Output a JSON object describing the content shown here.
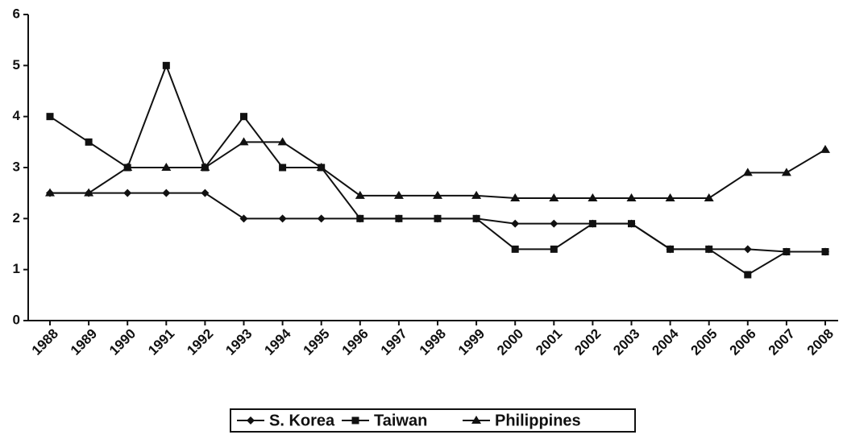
{
  "chart_data": {
    "type": "line",
    "categories": [
      "1988",
      "1989",
      "1990",
      "1991",
      "1992",
      "1993",
      "1994",
      "1995",
      "1996",
      "1997",
      "1998",
      "1999",
      "2000",
      "2001",
      "2002",
      "2003",
      "2004",
      "2005",
      "2006",
      "2007",
      "2008"
    ],
    "series": [
      {
        "name": "S. Korea",
        "color": "#111111",
        "values": [
          2.5,
          2.5,
          2.5,
          2.5,
          2.5,
          2,
          2,
          2,
          2,
          2,
          2,
          2,
          1.9,
          1.9,
          1.9,
          1.9,
          1.4,
          1.4,
          1.4,
          1.35,
          1.35
        ]
      },
      {
        "name": "Taiwan",
        "color": "#111111",
        "values": [
          4,
          3.5,
          3,
          5,
          3,
          4,
          3,
          3,
          2,
          2,
          2,
          2,
          1.4,
          1.4,
          1.9,
          1.9,
          1.4,
          1.4,
          0.9,
          1.35,
          1.35
        ]
      },
      {
        "name": "Philippines",
        "color": "#111111",
        "values": [
          2.5,
          2.5,
          3,
          3,
          3,
          3.5,
          3.5,
          3,
          2.45,
          2.45,
          2.45,
          2.45,
          2.4,
          2.4,
          2.4,
          2.4,
          2.4,
          2.4,
          2.9,
          2.9,
          3.35
        ]
      }
    ],
    "ylim": [
      0,
      6
    ],
    "yticks": [
      0,
      1,
      2,
      3,
      4,
      5,
      6
    ],
    "legend": "bottom"
  }
}
